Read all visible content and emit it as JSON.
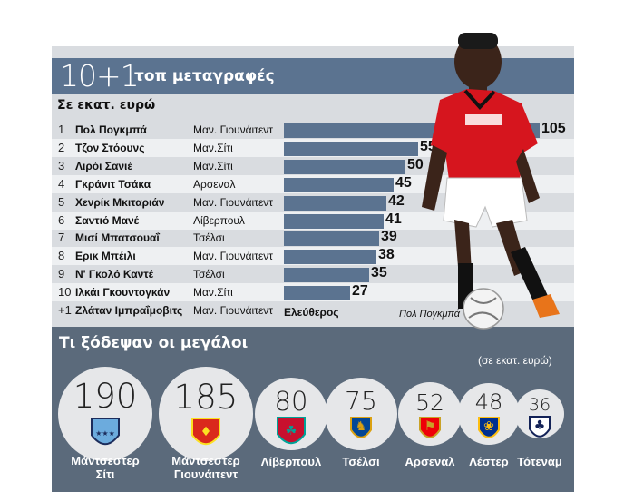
{
  "title": {
    "number": "10+1",
    "text": "τοπ μεταγραφές"
  },
  "subtitle": "Σε εκατ. ευρώ",
  "chart_data": {
    "type": "bar",
    "title": "10+1 τοπ μεταγραφές",
    "unit": "Σε εκατ. ευρώ",
    "max": 105,
    "rows": [
      {
        "rank": "1",
        "name": "Πολ Πογκμπά",
        "team": "Μαν. Γιουνάιτεντ",
        "value": 105
      },
      {
        "rank": "2",
        "name": "Τζον Στόουνς",
        "team": "Μαν.Σίτι",
        "value": 55
      },
      {
        "rank": "3",
        "name": "Λιρόι Σανιέ",
        "team": "Μαν.Σίτι",
        "value": 50
      },
      {
        "rank": "4",
        "name": "Γκράνιτ Τσάκα",
        "team": "Αρσεναλ",
        "value": 45
      },
      {
        "rank": "5",
        "name": "Χενρίκ Μκιταριάν",
        "team": "Μαν. Γιουνάιτεντ",
        "value": 42
      },
      {
        "rank": "6",
        "name": "Σαντιό Μανέ",
        "team": "Λίβερπουλ",
        "value": 41
      },
      {
        "rank": "7",
        "name": "Μισί Μπατσουαΐ",
        "team": "Τσέλσι",
        "value": 39
      },
      {
        "rank": "8",
        "name": "Ερικ Μπέιλι",
        "team": "Μαν. Γιουνάιτεντ",
        "value": 38
      },
      {
        "rank": "9",
        "name": "Ν' Γκολό Καντέ",
        "team": "Τσέλσι",
        "value": 35
      },
      {
        "rank": "10",
        "name": "Ιλκάι Γκουντογκάν",
        "team": "Μαν.Σίτι",
        "value": 27
      },
      {
        "rank": "+1",
        "name": "Ζλάταν Ιμπραΐμοβιτς",
        "team": "Μαν. Γιουνάιτεντ",
        "value_text": "Ελεύθερος"
      }
    ],
    "spend": {
      "title": "Τι ξόδεψαν οι μεγάλοι",
      "unit": "(σε εκατ. ευρώ)",
      "clubs": [
        {
          "name_lines": [
            "Μάντσεστερ",
            "Σίτι"
          ],
          "value": 190,
          "crest": "man-city-crest-icon"
        },
        {
          "name_lines": [
            "Μάντσεστερ",
            "Γιουνάιτεντ"
          ],
          "value": 185,
          "crest": "man-united-crest-icon"
        },
        {
          "name_lines": [
            "Λίβερπουλ"
          ],
          "value": 80,
          "crest": "liverpool-crest-icon"
        },
        {
          "name_lines": [
            "Τσέλσι"
          ],
          "value": 75,
          "crest": "chelsea-crest-icon"
        },
        {
          "name_lines": [
            "Αρσεναλ"
          ],
          "value": 52,
          "crest": "arsenal-crest-icon"
        },
        {
          "name_lines": [
            "Λέστερ"
          ],
          "value": 48,
          "crest": "leicester-crest-icon"
        },
        {
          "name_lines": [
            "Τότεναμ"
          ],
          "value": 36,
          "crest": "tottenham-crest-icon"
        }
      ]
    }
  },
  "photo_caption": "Πολ Πογκμπά",
  "colors": {
    "accent": "#5b7390",
    "panel": "#d9dce0",
    "bottom": "#5b6a7b",
    "row_alt": "#eef0f2"
  }
}
